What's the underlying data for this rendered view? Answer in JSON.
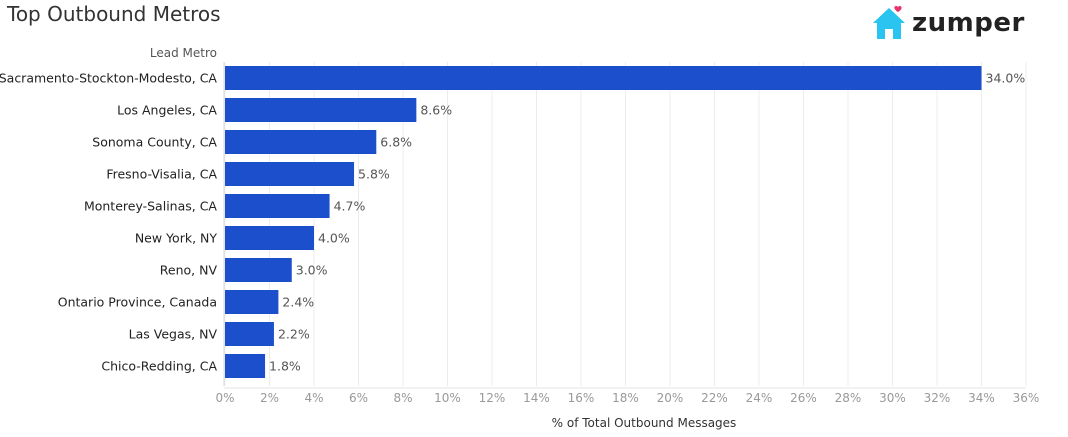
{
  "brand": {
    "name": "zumper",
    "accent": "#29c4f0",
    "heart": "#e8326f"
  },
  "chart_data": {
    "type": "bar",
    "orientation": "horizontal",
    "title": "Top Outbound Metros",
    "category_header": "Lead Metro",
    "xlabel": "% of Total Outbound Messages",
    "xlim": [
      0,
      36
    ],
    "xticks": [
      "0%",
      "2%",
      "4%",
      "6%",
      "8%",
      "10%",
      "12%",
      "14%",
      "16%",
      "18%",
      "20%",
      "22%",
      "24%",
      "26%",
      "28%",
      "30%",
      "32%",
      "34%",
      "36%"
    ],
    "grid": true,
    "bar_color": "#1b4fcc",
    "categories": [
      "Sacramento-Stockton-Modesto, CA",
      "Los Angeles, CA",
      "Sonoma County, CA",
      "Fresno-Visalia, CA",
      "Monterey-Salinas, CA",
      "New York, NY",
      "Reno, NV",
      "Ontario Province, Canada",
      "Las Vegas, NV",
      "Chico-Redding, CA"
    ],
    "values": [
      34.0,
      8.6,
      6.8,
      5.8,
      4.7,
      4.0,
      3.0,
      2.4,
      2.2,
      1.8
    ],
    "value_labels": [
      "34.0%",
      "8.6%",
      "6.8%",
      "5.8%",
      "4.7%",
      "4.0%",
      "3.0%",
      "2.4%",
      "2.2%",
      "1.8%"
    ]
  }
}
